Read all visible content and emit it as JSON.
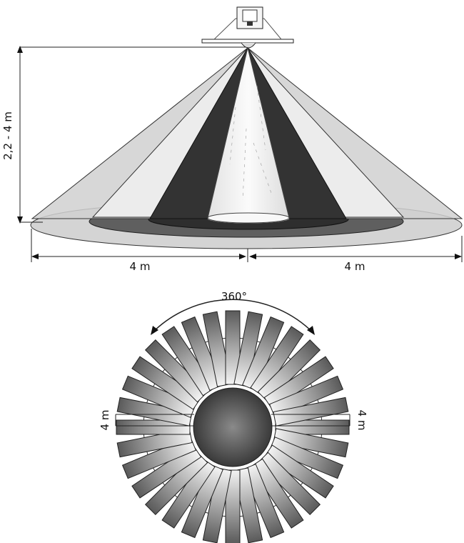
{
  "side_view": {
    "height_label": "2,2 - 4 m",
    "left_width_label": "4 m",
    "right_width_label": "4 m"
  },
  "top_view": {
    "angle_label": "360°",
    "left_radius_label": "4 m",
    "right_radius_label": "4 m",
    "spoke_count": 32
  },
  "colors": {
    "zone_outer": "#d2d2d2",
    "zone_light": "#e8e8e8",
    "zone_dark": "#333333",
    "zone_center": "#f6f6f6",
    "line": "#222222"
  }
}
